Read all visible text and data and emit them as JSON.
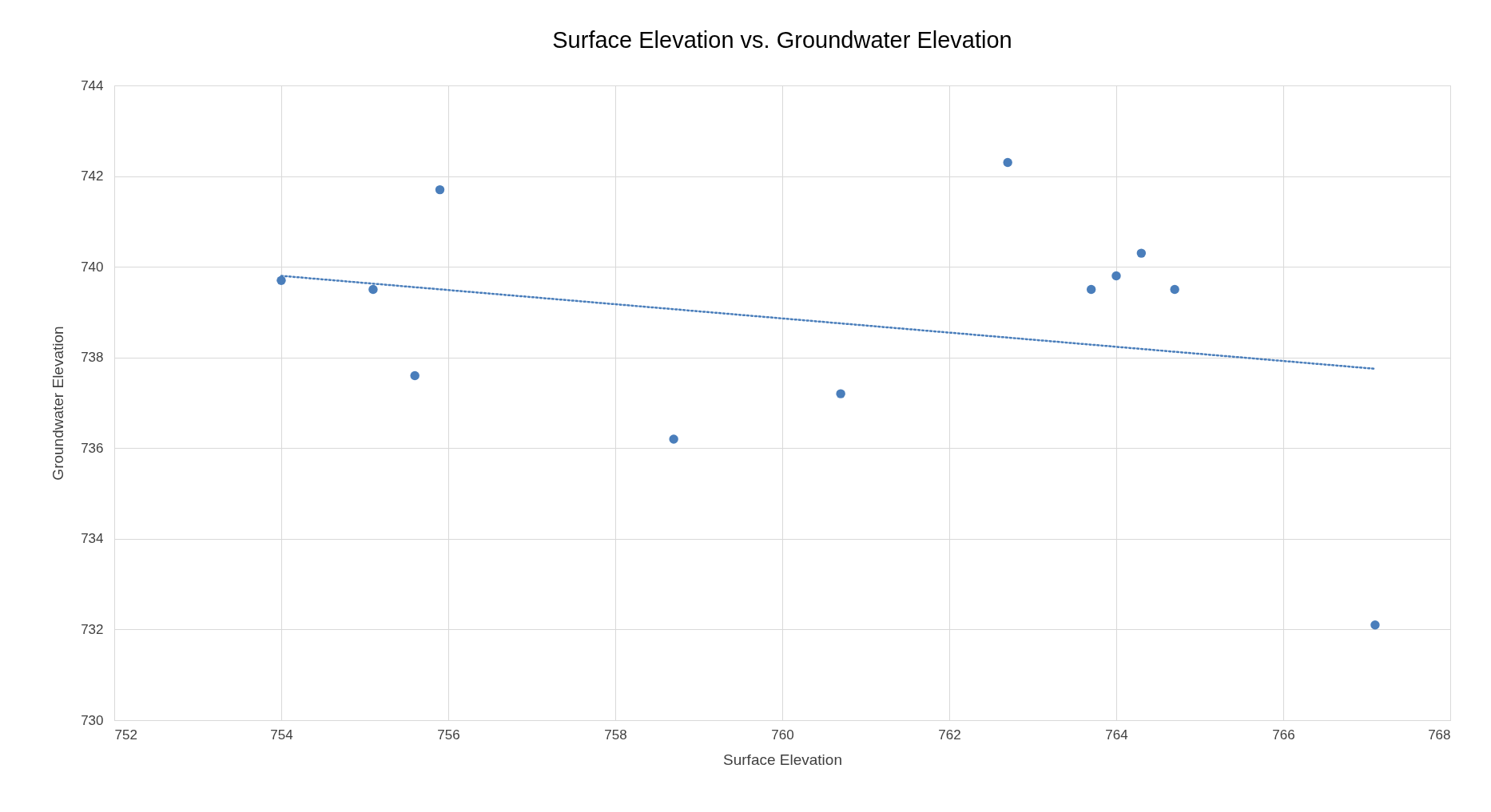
{
  "chart_data": {
    "type": "scatter",
    "title": "Surface Elevation vs. Groundwater Elevation",
    "xlabel": "Surface Elevation",
    "ylabel": "Groundwater Elevation",
    "xlim": [
      752,
      768
    ],
    "xticks": [
      752,
      754,
      756,
      758,
      760,
      762,
      764,
      766,
      768
    ],
    "ylim": [
      730,
      744
    ],
    "yticks": [
      730,
      732,
      734,
      736,
      738,
      740,
      742,
      744
    ],
    "grid": true,
    "marker": "circle",
    "series": [
      {
        "color": "#4a7ebb",
        "x": [
          754.0,
          755.1,
          755.6,
          755.9,
          758.7,
          760.7,
          762.7,
          763.7,
          764.0,
          764.3,
          764.7,
          767.1
        ],
        "values": [
          739.7,
          739.5,
          737.6,
          741.7,
          736.2,
          737.2,
          742.3,
          739.5,
          739.8,
          740.3,
          739.5,
          732.1
        ]
      },
      {
        "type": "line",
        "color": "#4a7ebb",
        "line_style": "dotted",
        "marker": "none",
        "x": [
          754.0,
          767.1
        ],
        "values": [
          739.8,
          737.75
        ]
      }
    ]
  }
}
